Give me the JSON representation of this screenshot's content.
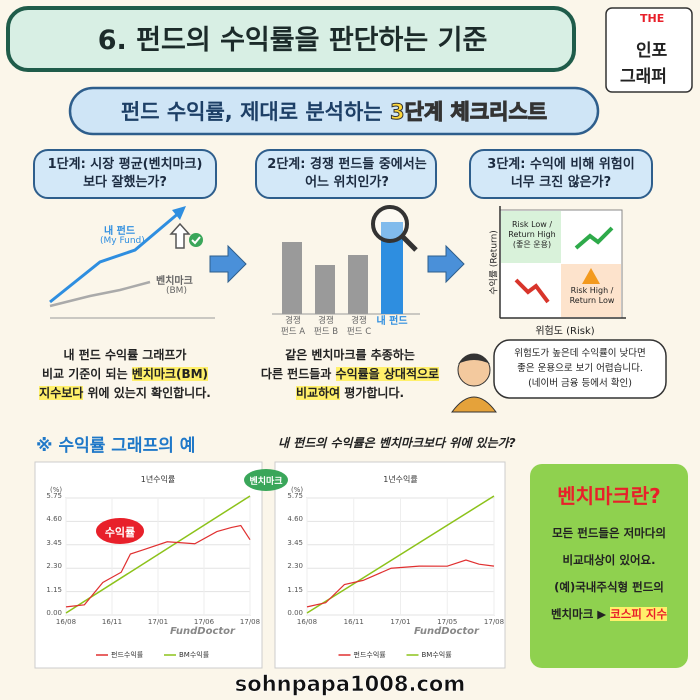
{
  "header": {
    "title": "6. 펀드의 수익률을 판단하는 기준",
    "logo": [
      "THE",
      "인포",
      "그래퍼"
    ]
  },
  "banner": {
    "lead": "펀드 수익률, 제대로 분석하는",
    "highlight": "3단계 체크리스트"
  },
  "steps": [
    {
      "title": [
        "1단계: 시장 평균(벤치마크)",
        "보다 잘했는가?"
      ],
      "figure": {
        "my_fund": "내 펀드",
        "my_fund_en": "(My Fund)",
        "benchmark": "벤치마크",
        "benchmark_en": "(BM)"
      },
      "text": [
        [
          {
            "text": "내 펀드 수익률 그래프가",
            "highlight": false
          }
        ],
        [
          {
            "text": "비교 기준이 되는 ",
            "highlight": false
          },
          {
            "text": "벤치마크(BM)",
            "highlight": true
          }
        ],
        [
          {
            "text": "지수보다",
            "highlight": true
          },
          {
            "text": " 위에 있는지 확인합니다.",
            "highlight": false
          }
        ]
      ]
    },
    {
      "title": [
        "2단계: 경쟁 펀드들 중에서는",
        "어느 위치인가?"
      ],
      "bars": [
        [
          "경쟁",
          "펀드 A"
        ],
        [
          "경쟁",
          "펀드 B"
        ],
        [
          "경쟁",
          "펀드 C"
        ],
        [
          "내 펀드"
        ]
      ],
      "text": [
        [
          {
            "text": "같은 벤치마크를 추종하는",
            "highlight": false
          }
        ],
        [
          {
            "text": "다른 펀드들과 ",
            "highlight": false
          },
          {
            "text": "수익률을 상대적으로",
            "highlight": true
          }
        ],
        [
          {
            "text": "비교하여",
            "highlight": true
          },
          {
            "text": " 평가합니다.",
            "highlight": false
          }
        ]
      ]
    },
    {
      "title": [
        "3단계: 수익에 비해 위험이",
        "너무 크진 않은가?"
      ],
      "matrix": {
        "y_label": "수익률 (Return)",
        "x_label": "위험도 (Risk)",
        "good": [
          "Risk Low /",
          "Return High",
          "(좋은 운용)"
        ],
        "bad": [
          "Risk High /",
          "Return Low"
        ]
      },
      "bubble": [
        "위험도가 높은데 수익률이 낮다면",
        "좋은 운용으로 보기 어렵습니다.",
        "(네이버 금융 등에서 확인)"
      ]
    }
  ],
  "example": {
    "heading": "※ 수익률 그래프의 예",
    "question": "내 펀드의 수익률은 벤치마크보다 위에 있는가?",
    "benchmark_tag": "벤치마크",
    "return_tag": "수익률",
    "charts": [
      {
        "title": "1년수익률",
        "unit": "(%)",
        "yticks": [
          "5.75",
          "4.60",
          "3.45",
          "2.30",
          "1.15",
          "0.00"
        ],
        "xticks": [
          "16/08",
          "16/11",
          "17/01",
          "17/06",
          "17/08"
        ],
        "brand": "FundDoctor",
        "legend": [
          "펀드수익률",
          "BM수익률"
        ]
      },
      {
        "title": "1년수익률",
        "unit": "(%)",
        "yticks": [
          "5.75",
          "4.60",
          "3.45",
          "2.30",
          "1.15",
          "0.00"
        ],
        "xticks": [
          "16/08",
          "16/11",
          "17/01",
          "17/05",
          "17/08"
        ],
        "brand": "FundDoctor",
        "legend": [
          "펀드수익률",
          "BM수익률"
        ]
      }
    ]
  },
  "sidebar": {
    "title": "벤치마크란?",
    "text": [
      [
        {
          "text": "모든 펀드들은 저마다의",
          "highlight": false
        }
      ],
      [
        {
          "text": "비교대상이 있어요.",
          "highlight": false
        }
      ],
      [
        {
          "text": "(예)국내주식형 펀드의",
          "highlight": false
        }
      ],
      [
        {
          "text": "벤치마크 ▶ ",
          "highlight": false
        },
        {
          "text": "코스피 지수",
          "highlight": true
        }
      ]
    ]
  },
  "footer": "sohnpapa1008.com"
}
